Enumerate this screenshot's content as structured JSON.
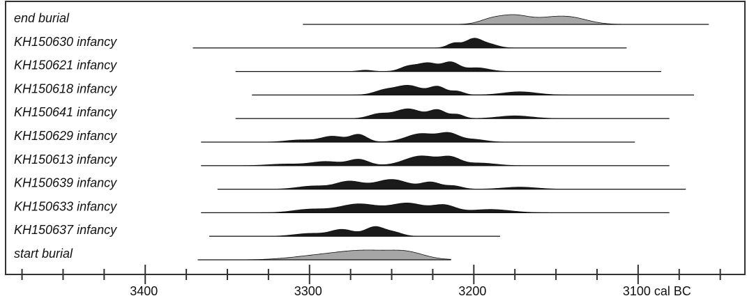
{
  "chart_data": {
    "type": "area",
    "title": "",
    "xlabel": "",
    "ylabel": "",
    "x_unit": "cal BC",
    "xlim": [
      3485,
      3035
    ],
    "ticks": {
      "major": [
        3400,
        3300,
        3200,
        3100
      ],
      "minor_step": 25
    },
    "tick_labels": [
      "3400",
      "3300",
      "3200",
      "3100 cal BC"
    ],
    "colors": {
      "primary": "#1a1a1a",
      "boundary": "#a6a6a6",
      "line": "#111111",
      "frame": "#333333"
    },
    "series": [
      {
        "name": "end burial",
        "kind": "boundary",
        "range": [
          3304,
          3057
        ],
        "peaks": [
          [
            3176,
            1.0,
            9
          ],
          [
            3152,
            0.75,
            12
          ],
          [
            3138,
            0.45,
            10
          ],
          [
            3190,
            0.5,
            7
          ]
        ]
      },
      {
        "name": "KH150630 infancy",
        "kind": "date",
        "range": [
          3371,
          3107
        ],
        "peaks": [
          [
            3200,
            1.0,
            5
          ],
          [
            3212,
            0.5,
            4
          ],
          [
            3190,
            0.35,
            5
          ]
        ]
      },
      {
        "name": "KH150621 infancy",
        "kind": "date",
        "range": [
          3345,
          3086
        ],
        "peaks": [
          [
            3228,
            0.8,
            6
          ],
          [
            3214,
            0.85,
            5
          ],
          [
            3240,
            0.45,
            5
          ],
          [
            3198,
            0.35,
            7
          ],
          [
            3266,
            0.12,
            4
          ]
        ]
      },
      {
        "name": "KH150618 infancy",
        "kind": "date",
        "range": [
          3335,
          3066
        ],
        "peaks": [
          [
            3240,
            0.95,
            8
          ],
          [
            3222,
            0.8,
            5
          ],
          [
            3210,
            0.35,
            4
          ],
          [
            3172,
            0.32,
            10
          ],
          [
            3255,
            0.4,
            6
          ]
        ]
      },
      {
        "name": "KH150641 infancy",
        "kind": "date",
        "range": [
          3345,
          3081
        ],
        "peaks": [
          [
            3240,
            1.0,
            8
          ],
          [
            3222,
            0.85,
            5
          ],
          [
            3210,
            0.4,
            4
          ],
          [
            3175,
            0.28,
            10
          ],
          [
            3258,
            0.45,
            6
          ]
        ]
      },
      {
        "name": "KH150629 infancy",
        "kind": "date",
        "range": [
          3366,
          3102
        ],
        "peaks": [
          [
            3286,
            0.55,
            7
          ],
          [
            3270,
            0.7,
            5
          ],
          [
            3232,
            0.8,
            9
          ],
          [
            3215,
            0.75,
            6
          ],
          [
            3306,
            0.2,
            8
          ],
          [
            3200,
            0.25,
            7
          ]
        ]
      },
      {
        "name": "KH150613 infancy",
        "kind": "date",
        "range": [
          3366,
          3081
        ],
        "peaks": [
          [
            3290,
            0.4,
            9
          ],
          [
            3270,
            0.6,
            6
          ],
          [
            3232,
            0.95,
            10
          ],
          [
            3214,
            0.7,
            6
          ],
          [
            3196,
            0.25,
            9
          ],
          [
            3315,
            0.15,
            10
          ]
        ]
      },
      {
        "name": "KH150639 infancy",
        "kind": "date",
        "range": [
          3356,
          3071
        ],
        "peaks": [
          [
            3276,
            0.75,
            8
          ],
          [
            3250,
            0.95,
            10
          ],
          [
            3226,
            0.65,
            6
          ],
          [
            3298,
            0.3,
            9
          ],
          [
            3172,
            0.2,
            10
          ],
          [
            3212,
            0.3,
            5
          ]
        ]
      },
      {
        "name": "KH150633 infancy",
        "kind": "date",
        "range": [
          3366,
          3081
        ],
        "peaks": [
          [
            3270,
            0.8,
            12
          ],
          [
            3240,
            0.85,
            10
          ],
          [
            3218,
            0.65,
            7
          ],
          [
            3300,
            0.3,
            10
          ],
          [
            3190,
            0.3,
            12
          ]
        ]
      },
      {
        "name": "KH150637 infancy",
        "kind": "date",
        "range": [
          3361,
          3184
        ],
        "peaks": [
          [
            3280,
            0.6,
            7
          ],
          [
            3260,
            0.85,
            6
          ],
          [
            3300,
            0.25,
            9
          ],
          [
            3248,
            0.3,
            5
          ]
        ]
      },
      {
        "name": "start burial",
        "kind": "boundary",
        "range": [
          3368,
          3214
        ],
        "peaks": [
          [
            3266,
            1.0,
            20
          ],
          [
            3300,
            0.25,
            15
          ],
          [
            3240,
            0.5,
            10
          ]
        ]
      }
    ]
  }
}
